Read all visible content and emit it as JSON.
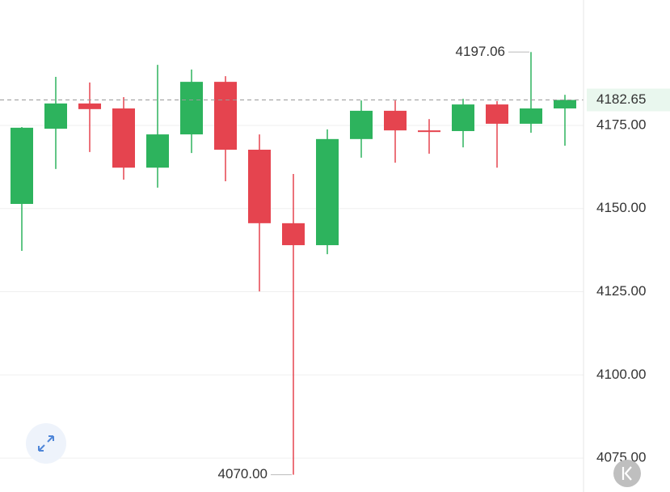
{
  "chart_data": {
    "type": "candlestick",
    "ylim": [
      4064.8,
      4212.7
    ],
    "yticks": [
      {
        "value": 4175,
        "label": "4175.00"
      },
      {
        "value": 4150,
        "label": "4150.00"
      },
      {
        "value": 4125,
        "label": "4125.00"
      },
      {
        "value": 4100,
        "label": "4100.00"
      },
      {
        "value": 4075,
        "label": "4075.00"
      }
    ],
    "grid": true,
    "up_color": "#2db35d",
    "down_color": "#e5444f",
    "open": [
      4151.4,
      4174.0,
      4181.6,
      4180.1,
      4162.3,
      4172.3,
      4188.1,
      4167.7,
      4145.6,
      4139.0,
      4170.9,
      4179.4,
      4173.5,
      4173.3,
      4181.3,
      4175.5,
      4180.1
    ],
    "high": [
      4174.5,
      4189.6,
      4187.9,
      4183.5,
      4193.2,
      4191.8,
      4189.8,
      4172.3,
      4160.4,
      4173.8,
      4182.5,
      4182.5,
      4176.9,
      4183.0,
      4182.3,
      4197.06,
      4184.2
    ],
    "low": [
      4137.3,
      4161.9,
      4167.0,
      4158.7,
      4156.3,
      4166.7,
      4158.2,
      4125.1,
      4070.0,
      4136.3,
      4165.3,
      4163.8,
      4166.5,
      4168.4,
      4162.3,
      4172.8,
      4168.9
    ],
    "close": [
      4174.3,
      4181.6,
      4179.9,
      4162.3,
      4172.3,
      4188.1,
      4167.7,
      4145.6,
      4139.0,
      4170.9,
      4179.4,
      4173.5,
      4173.3,
      4181.3,
      4175.5,
      4180.1,
      4182.65
    ],
    "annotations": [
      {
        "value": 4197.06,
        "label": "4197.06"
      },
      {
        "value": 4070.0,
        "label": "4070.00"
      }
    ],
    "last_price": {
      "value": 4182.65,
      "label": "4182.65"
    }
  }
}
